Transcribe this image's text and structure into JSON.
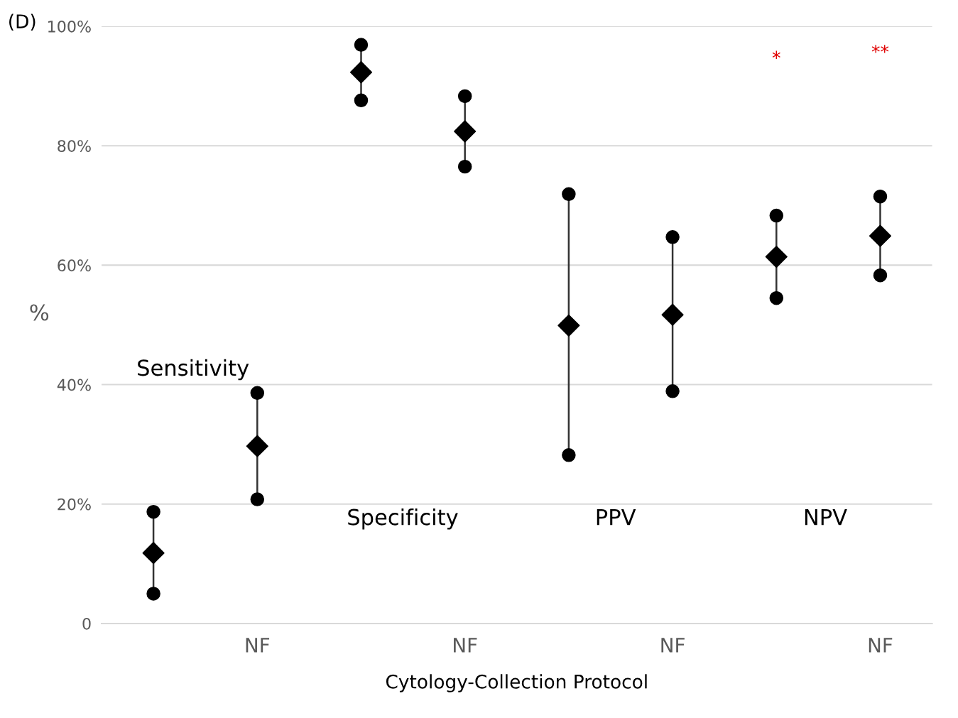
{
  "chart_data": {
    "type": "scatter",
    "categories": [
      null,
      "NF",
      null,
      "NF",
      null,
      "NF",
      null,
      "NF"
    ],
    "series": [
      {
        "color": "#000000",
        "marker": "circle",
        "values": [
          5.0,
          20.8,
          87.6,
          76.5,
          28.2,
          38.9,
          54.5,
          58.3
        ]
      },
      {
        "color": "#000000",
        "marker": "circle",
        "values": [
          18.7,
          38.6,
          96.9,
          88.3,
          71.9,
          64.7,
          68.3,
          71.5
        ]
      },
      {
        "color": "#000000",
        "marker": "diamond",
        "values": [
          11.8,
          29.7,
          92.3,
          82.4,
          49.9,
          51.7,
          61.4,
          64.9
        ]
      }
    ],
    "xlabel": "Cytology-Collection Protocol",
    "ylabel": "%",
    "ylim": [
      0,
      100
    ],
    "yticks": [
      {
        "value": 0,
        "label": "0"
      },
      {
        "value": 20,
        "label": "20%"
      },
      {
        "value": 40,
        "label": "40%"
      },
      {
        "value": 60,
        "label": "60%"
      },
      {
        "value": 80,
        "label": "80%"
      },
      {
        "value": 100,
        "label": "100%"
      }
    ],
    "grid": "y",
    "annotations": [
      "(D)",
      "Sensitivity",
      "Specificity",
      "PPV",
      "NPV",
      "*",
      "**"
    ]
  }
}
